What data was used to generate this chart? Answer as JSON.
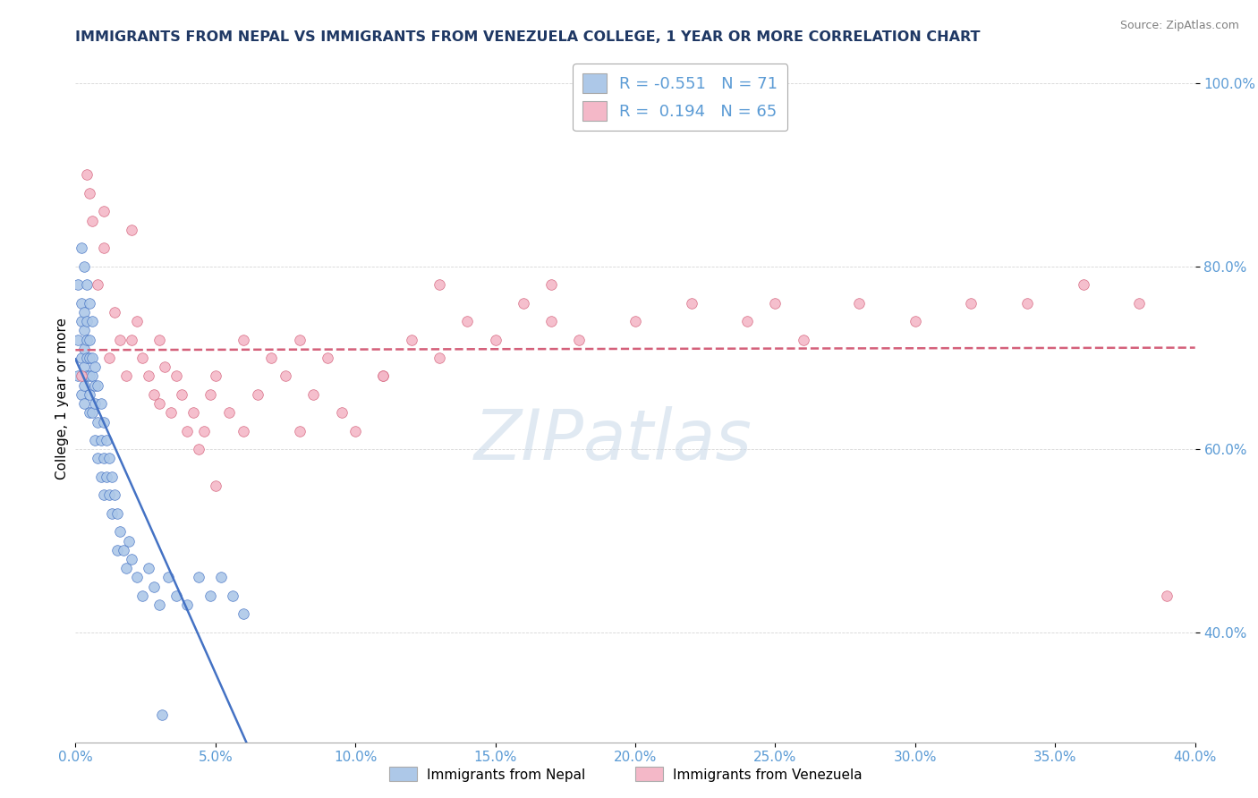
{
  "title": "IMMIGRANTS FROM NEPAL VS IMMIGRANTS FROM VENEZUELA COLLEGE, 1 YEAR OR MORE CORRELATION CHART",
  "source": "Source: ZipAtlas.com",
  "ylabel": "College, 1 year or more",
  "watermark": "ZIPatlas",
  "nepal_color": "#adc8e8",
  "nepal_line_color": "#4472c4",
  "venezuela_color": "#f4b8c8",
  "venezuela_line_color": "#d4607a",
  "nepal_R": -0.551,
  "nepal_N": 71,
  "venezuela_R": 0.194,
  "venezuela_N": 65,
  "nepal_scatter_x": [
    0.001,
    0.001,
    0.001,
    0.002,
    0.002,
    0.002,
    0.002,
    0.002,
    0.003,
    0.003,
    0.003,
    0.003,
    0.003,
    0.003,
    0.003,
    0.004,
    0.004,
    0.004,
    0.004,
    0.004,
    0.005,
    0.005,
    0.005,
    0.005,
    0.005,
    0.005,
    0.006,
    0.006,
    0.006,
    0.006,
    0.007,
    0.007,
    0.007,
    0.007,
    0.008,
    0.008,
    0.008,
    0.009,
    0.009,
    0.009,
    0.01,
    0.01,
    0.01,
    0.011,
    0.011,
    0.012,
    0.012,
    0.013,
    0.013,
    0.014,
    0.015,
    0.015,
    0.016,
    0.017,
    0.018,
    0.019,
    0.02,
    0.022,
    0.024,
    0.026,
    0.028,
    0.03,
    0.033,
    0.036,
    0.04,
    0.044,
    0.048,
    0.052,
    0.056,
    0.06,
    0.031
  ],
  "nepal_scatter_y": [
    0.72,
    0.78,
    0.68,
    0.82,
    0.76,
    0.7,
    0.66,
    0.74,
    0.8,
    0.71,
    0.67,
    0.73,
    0.65,
    0.69,
    0.75,
    0.78,
    0.72,
    0.68,
    0.74,
    0.7,
    0.76,
    0.7,
    0.66,
    0.72,
    0.68,
    0.64,
    0.74,
    0.68,
    0.64,
    0.7,
    0.69,
    0.65,
    0.61,
    0.67,
    0.67,
    0.63,
    0.59,
    0.65,
    0.61,
    0.57,
    0.63,
    0.59,
    0.55,
    0.61,
    0.57,
    0.59,
    0.55,
    0.57,
    0.53,
    0.55,
    0.53,
    0.49,
    0.51,
    0.49,
    0.47,
    0.5,
    0.48,
    0.46,
    0.44,
    0.47,
    0.45,
    0.43,
    0.46,
    0.44,
    0.43,
    0.46,
    0.44,
    0.46,
    0.44,
    0.42,
    0.31
  ],
  "venezuela_scatter_x": [
    0.002,
    0.004,
    0.006,
    0.008,
    0.01,
    0.012,
    0.014,
    0.016,
    0.018,
    0.02,
    0.022,
    0.024,
    0.026,
    0.028,
    0.03,
    0.032,
    0.034,
    0.036,
    0.038,
    0.04,
    0.042,
    0.044,
    0.046,
    0.048,
    0.05,
    0.055,
    0.06,
    0.065,
    0.07,
    0.075,
    0.08,
    0.085,
    0.09,
    0.095,
    0.1,
    0.11,
    0.12,
    0.13,
    0.14,
    0.15,
    0.16,
    0.17,
    0.18,
    0.2,
    0.22,
    0.24,
    0.26,
    0.28,
    0.3,
    0.32,
    0.34,
    0.36,
    0.38,
    0.005,
    0.01,
    0.02,
    0.03,
    0.05,
    0.08,
    0.11,
    0.17,
    0.25,
    0.06,
    0.13,
    0.39
  ],
  "venezuela_scatter_y": [
    0.68,
    0.9,
    0.85,
    0.78,
    0.82,
    0.7,
    0.75,
    0.72,
    0.68,
    0.72,
    0.74,
    0.7,
    0.68,
    0.66,
    0.72,
    0.69,
    0.64,
    0.68,
    0.66,
    0.62,
    0.64,
    0.6,
    0.62,
    0.66,
    0.68,
    0.64,
    0.62,
    0.66,
    0.7,
    0.68,
    0.62,
    0.66,
    0.7,
    0.64,
    0.62,
    0.68,
    0.72,
    0.7,
    0.74,
    0.72,
    0.76,
    0.74,
    0.72,
    0.74,
    0.76,
    0.74,
    0.72,
    0.76,
    0.74,
    0.76,
    0.76,
    0.78,
    0.76,
    0.88,
    0.86,
    0.84,
    0.65,
    0.56,
    0.72,
    0.68,
    0.78,
    0.76,
    0.72,
    0.78,
    0.44
  ],
  "xmin": 0.0,
  "xmax": 0.4,
  "ymin": 0.28,
  "ymax": 1.03,
  "title_color": "#1f3864",
  "axis_label_color": "#5b9bd5",
  "grid_color": "#cccccc"
}
